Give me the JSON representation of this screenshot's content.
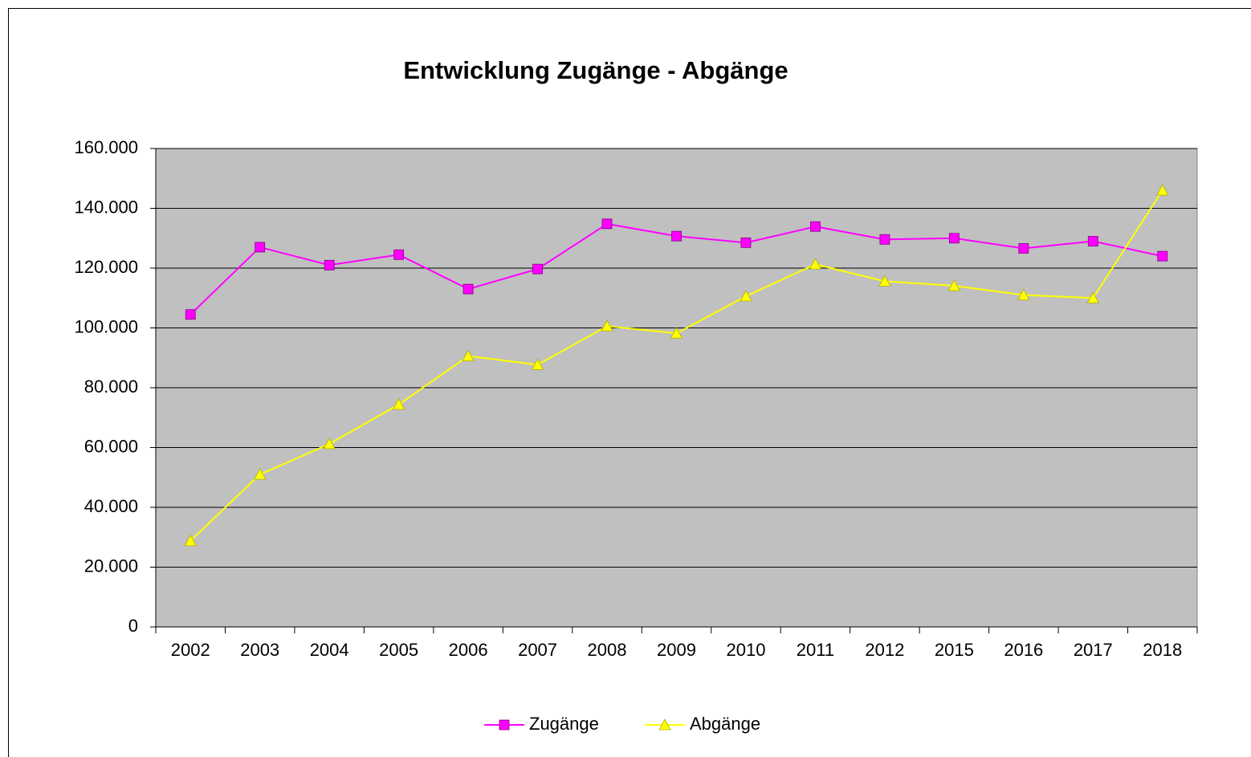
{
  "chart_data": {
    "type": "line",
    "title": "Entwicklung Zugänge - Abgänge",
    "categories": [
      "2002",
      "2003",
      "2004",
      "2005",
      "2006",
      "2007",
      "2008",
      "2009",
      "2010",
      "2011",
      "2012",
      "2015",
      "2016",
      "2017",
      "2018"
    ],
    "series": [
      {
        "name": "Zugänge",
        "color": "#ff00ff",
        "marker": "square",
        "values": [
          104500,
          127000,
          121000,
          124500,
          113000,
          119700,
          134800,
          130700,
          128500,
          133900,
          129600,
          130000,
          126600,
          129000,
          124000
        ]
      },
      {
        "name": "Abgänge",
        "color": "#ffff00",
        "marker": "triangle",
        "values": [
          28800,
          51000,
          61200,
          74400,
          90600,
          87700,
          100600,
          98200,
          110600,
          121300,
          115600,
          114100,
          111000,
          110000,
          146000
        ]
      }
    ],
    "ylim": [
      0,
      160000
    ],
    "yticks": [
      0,
      {
        "value": 20000,
        "label": "20.000"
      },
      {
        "value": 40000,
        "label": "40.000"
      },
      {
        "value": 60000,
        "label": "60.000"
      },
      {
        "value": 80000,
        "label": "80.000"
      },
      {
        "value": 100000,
        "label": "100.000"
      },
      {
        "value": 120000,
        "label": "120.000"
      },
      {
        "value": 140000,
        "label": "140.000"
      },
      {
        "value": 160000,
        "label": "160.000"
      }
    ],
    "grid": true,
    "legend": "bottom"
  }
}
